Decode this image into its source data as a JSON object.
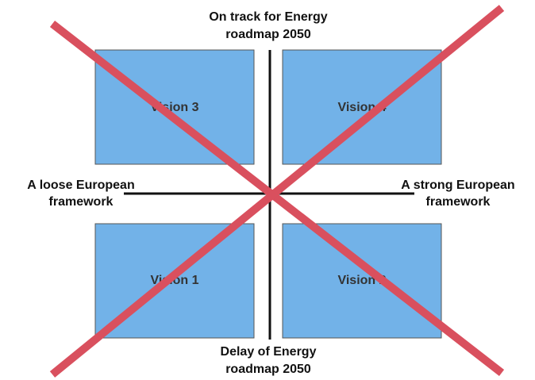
{
  "axes": {
    "top": [
      "On track for Energy",
      "roadmap 2050"
    ],
    "bottom": [
      "Delay of Energy",
      "roadmap 2050"
    ],
    "left": [
      "A loose European",
      "framework"
    ],
    "right": [
      "A strong European",
      "framework"
    ]
  },
  "quadrants": [
    {
      "label": "Vision 3"
    },
    {
      "label": "Vision 4"
    },
    {
      "label": "Vision 1"
    },
    {
      "label": "Vision 2"
    }
  ]
}
